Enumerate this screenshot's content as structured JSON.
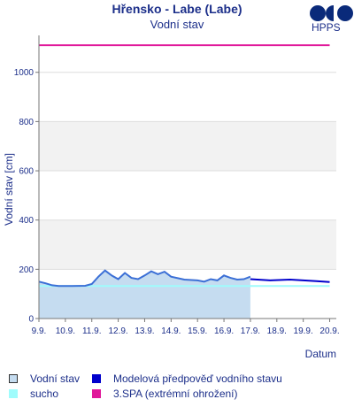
{
  "chart_data": {
    "type": "area",
    "title": "Hřensko - Labe (Labe)",
    "subtitle": "Vodní stav",
    "brand": "HPPS",
    "xlabel": "Datum",
    "ylabel": "Vodní stav [cm]",
    "ylim": [
      0,
      1150
    ],
    "xlim": [
      "2024-09-09 00:00",
      "2024-09-20 06:00"
    ],
    "yticks": [
      0,
      200,
      400,
      600,
      800,
      1000
    ],
    "xticks": [
      "9.9.",
      "10.9.",
      "11.9.",
      "12.9.",
      "13.9.",
      "14.9.",
      "15.9.",
      "16.9.",
      "17.9.",
      "18.9.",
      "19.9.",
      "20.9."
    ],
    "grid": true,
    "legend_position": "bottom",
    "series": [
      {
        "name": "Vodní stav",
        "type": "area",
        "color": "#3b6fd6",
        "fill": "#c5dcf0",
        "x": [
          "2024-09-09 00:00",
          "2024-09-09 06:00",
          "2024-09-09 12:00",
          "2024-09-09 18:00",
          "2024-09-10 06:00",
          "2024-09-10 18:00",
          "2024-09-11 00:00",
          "2024-09-11 06:00",
          "2024-09-11 12:00",
          "2024-09-11 18:00",
          "2024-09-12 00:00",
          "2024-09-12 06:00",
          "2024-09-12 12:00",
          "2024-09-12 18:00",
          "2024-09-13 00:00",
          "2024-09-13 06:00",
          "2024-09-13 12:00",
          "2024-09-13 18:00",
          "2024-09-14 00:00",
          "2024-09-14 12:00",
          "2024-09-15 00:00",
          "2024-09-15 06:00",
          "2024-09-15 12:00",
          "2024-09-15 18:00",
          "2024-09-16 00:00",
          "2024-09-16 06:00",
          "2024-09-16 12:00",
          "2024-09-16 18:00",
          "2024-09-17 00:00"
        ],
        "values": [
          150,
          143,
          135,
          132,
          132,
          133,
          140,
          170,
          195,
          175,
          160,
          185,
          165,
          160,
          175,
          192,
          180,
          190,
          170,
          158,
          155,
          150,
          160,
          155,
          175,
          165,
          158,
          160,
          170
        ]
      },
      {
        "name": "Modelová předpověď vodního stavu",
        "type": "line",
        "color": "#0000cc",
        "x": [
          "2024-09-17 00:00",
          "2024-09-17 18:00",
          "2024-09-18 12:00",
          "2024-09-19 00:00",
          "2024-09-19 12:00",
          "2024-09-20 00:00"
        ],
        "values": [
          160,
          155,
          158,
          155,
          152,
          148
        ]
      },
      {
        "name": "sucho",
        "type": "line",
        "color": "#9ffcfc",
        "x": [
          "2024-09-09 00:00",
          "2024-09-20 00:00"
        ],
        "values": [
          132,
          132
        ]
      },
      {
        "name": "3.SPA (extrémní ohrožení)",
        "type": "line",
        "color": "#e0189a",
        "x": [
          "2024-09-09 00:00",
          "2024-09-20 00:00"
        ],
        "values": [
          1110,
          1110
        ]
      }
    ]
  }
}
